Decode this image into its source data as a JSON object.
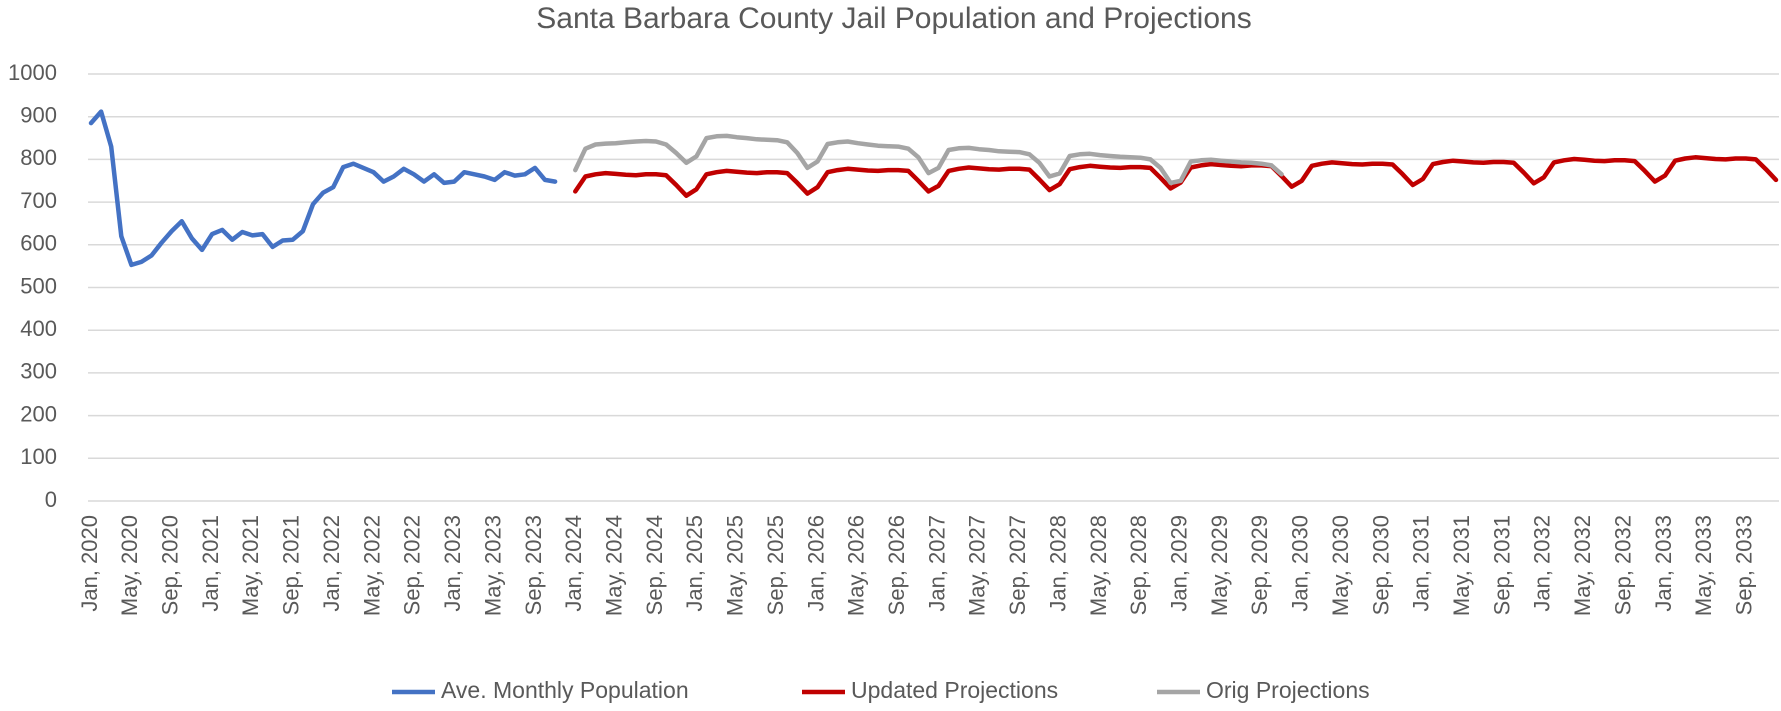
{
  "chart_data": {
    "type": "line",
    "title": "Santa Barbara County Jail Population and Projections",
    "categories": [
      "Jan, 2020",
      null,
      null,
      null,
      "May, 2020",
      null,
      null,
      null,
      "Sep, 2020",
      null,
      null,
      null,
      "Jan, 2021",
      null,
      null,
      null,
      "May, 2021",
      null,
      null,
      null,
      "Sep, 2021",
      null,
      null,
      null,
      "Jan, 2022",
      null,
      null,
      null,
      "May, 2022",
      null,
      null,
      null,
      "Sep, 2022",
      null,
      null,
      null,
      "Jan, 2023",
      null,
      null,
      null,
      "May, 2023",
      null,
      null,
      null,
      "Sep, 2023",
      null,
      null,
      null,
      "Jan, 2024",
      null,
      null,
      null,
      "May, 2024",
      null,
      null,
      null,
      "Sep, 2024",
      null,
      null,
      null,
      "Jan, 2025",
      null,
      null,
      null,
      "May, 2025",
      null,
      null,
      null,
      "Sep, 2025",
      null,
      null,
      null,
      "Jan, 2026",
      null,
      null,
      null,
      "May, 2026",
      null,
      null,
      null,
      "Sep, 2026",
      null,
      null,
      null,
      "Jan, 2027",
      null,
      null,
      null,
      "May, 2027",
      null,
      null,
      null,
      "Sep, 2027",
      null,
      null,
      null,
      "Jan, 2028",
      null,
      null,
      null,
      "May, 2028",
      null,
      null,
      null,
      "Sep, 2028",
      null,
      null,
      null,
      "Jan, 2029",
      null,
      null,
      null,
      "May, 2029",
      null,
      null,
      null,
      "Sep, 2029",
      null,
      null,
      null,
      "Jan, 2030",
      null,
      null,
      null,
      "May, 2030",
      null,
      null,
      null,
      "Sep, 2030",
      null,
      null,
      null,
      "Jan, 2031",
      null,
      null,
      null,
      "May, 2031",
      null,
      null,
      null,
      "Sep, 2031",
      null,
      null,
      null,
      "Jan, 2032",
      null,
      null,
      null,
      "May, 2032",
      null,
      null,
      null,
      "Sep, 2032",
      null,
      null,
      null,
      "Jan, 2033",
      null,
      null,
      null,
      "May, 2033",
      null,
      null,
      null,
      "Sep, 2033",
      null,
      null,
      null
    ],
    "series": [
      {
        "name": "Ave. Monthly Population",
        "color": "#4472c4",
        "values": [
          885,
          912,
          830,
          620,
          553,
          560,
          575,
          605,
          632,
          655,
          615,
          588,
          625,
          635,
          612,
          630,
          622,
          625,
          595,
          610,
          612,
          632,
          695,
          722,
          735,
          782,
          790,
          780,
          770,
          748,
          760,
          778,
          765,
          748,
          765,
          745,
          748,
          770,
          765,
          760,
          752,
          770,
          762,
          765,
          780,
          752,
          748,
          null,
          null,
          null,
          null,
          null,
          null,
          null,
          null,
          null,
          null,
          null,
          null,
          null,
          null,
          null,
          null,
          null,
          null,
          null,
          null,
          null,
          null,
          null,
          null,
          null,
          null,
          null,
          null,
          null,
          null,
          null,
          null,
          null,
          null,
          null,
          null,
          null,
          null,
          null,
          null,
          null,
          null,
          null,
          null,
          null,
          null,
          null,
          null,
          null,
          null,
          null,
          null,
          null,
          null,
          null,
          null,
          null,
          null,
          null,
          null,
          null,
          null,
          null,
          null,
          null,
          null,
          null,
          null,
          null,
          null,
          null,
          null,
          null,
          null,
          null,
          null,
          null,
          null,
          null,
          null,
          null,
          null,
          null,
          null,
          null,
          null,
          null,
          null,
          null,
          null,
          null,
          null,
          null,
          null,
          null,
          null,
          null,
          null,
          null,
          null,
          null,
          null,
          null,
          null,
          null,
          null,
          null,
          null,
          null,
          null,
          null,
          null,
          null,
          null,
          null,
          null,
          null,
          null,
          null,
          null,
          null
        ]
      },
      {
        "name": "Updated Projections",
        "color": "#c00000",
        "values": [
          null,
          null,
          null,
          null,
          null,
          null,
          null,
          null,
          null,
          null,
          null,
          null,
          null,
          null,
          null,
          null,
          null,
          null,
          null,
          null,
          null,
          null,
          null,
          null,
          null,
          null,
          null,
          null,
          null,
          null,
          null,
          null,
          null,
          null,
          null,
          null,
          null,
          null,
          null,
          null,
          null,
          null,
          null,
          null,
          null,
          null,
          null,
          null,
          725,
          760,
          765,
          768,
          766,
          764,
          763,
          765,
          765,
          763,
          740,
          715,
          730,
          765,
          770,
          773,
          771,
          769,
          768,
          770,
          770,
          768,
          745,
          720,
          735,
          770,
          775,
          778,
          776,
          774,
          773,
          775,
          775,
          773,
          750,
          725,
          738,
          773,
          778,
          781,
          779,
          777,
          776,
          778,
          778,
          776,
          753,
          728,
          742,
          777,
          782,
          785,
          783,
          781,
          780,
          782,
          782,
          780,
          757,
          732,
          746,
          781,
          786,
          789,
          787,
          785,
          784,
          786,
          786,
          784,
          761,
          736,
          750,
          785,
          790,
          793,
          791,
          789,
          788,
          790,
          790,
          788,
          765,
          740,
          754,
          789,
          794,
          797,
          795,
          793,
          792,
          794,
          794,
          792,
          769,
          744,
          758,
          793,
          798,
          801,
          799,
          797,
          796,
          798,
          798,
          796,
          773,
          748,
          762,
          797,
          802,
          805,
          803,
          801,
          800,
          802,
          802,
          800,
          777,
          752
        ]
      },
      {
        "name": "Orig Projections",
        "color": "#a5a5a5",
        "values": [
          null,
          null,
          null,
          null,
          null,
          null,
          null,
          null,
          null,
          null,
          null,
          null,
          null,
          null,
          null,
          null,
          null,
          null,
          null,
          null,
          null,
          null,
          null,
          null,
          null,
          null,
          null,
          null,
          null,
          null,
          null,
          null,
          null,
          null,
          null,
          null,
          null,
          null,
          null,
          null,
          null,
          null,
          null,
          null,
          null,
          null,
          null,
          null,
          775,
          825,
          835,
          837,
          838,
          840,
          842,
          843,
          842,
          835,
          815,
          792,
          807,
          850,
          854,
          855,
          852,
          850,
          847,
          846,
          845,
          840,
          815,
          780,
          795,
          836,
          840,
          842,
          838,
          835,
          832,
          831,
          830,
          825,
          805,
          768,
          780,
          822,
          826,
          827,
          824,
          822,
          819,
          818,
          817,
          812,
          792,
          760,
          767,
          808,
          812,
          813,
          810,
          808,
          806,
          805,
          804,
          800,
          780,
          745,
          750,
          795,
          798,
          799,
          797,
          795,
          793,
          792,
          790,
          786,
          765,
          null,
          null,
          null,
          null,
          null,
          null,
          null,
          null,
          null,
          null,
          null,
          null,
          null,
          null,
          null,
          null,
          null,
          null,
          null,
          null,
          null,
          null,
          null,
          null,
          null,
          null,
          null,
          null,
          null,
          null,
          null,
          null,
          null,
          null,
          null,
          null,
          null,
          null,
          null,
          null,
          null,
          null,
          null,
          null,
          null,
          null,
          null,
          null,
          null
        ]
      }
    ],
    "ylim": [
      0,
      1000
    ],
    "yticks": [
      0,
      100,
      200,
      300,
      400,
      500,
      600,
      700,
      800,
      900,
      1000
    ],
    "grid": true,
    "legend": "bottom"
  }
}
